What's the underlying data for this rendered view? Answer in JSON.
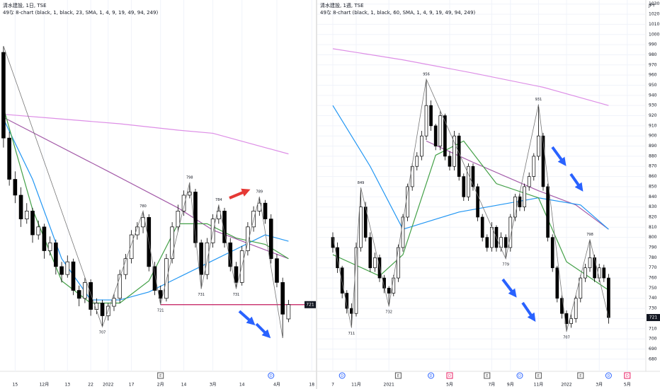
{
  "chart_data": [
    {
      "type": "candlestick",
      "title": "清水建設, 1日, TSE",
      "subtitle": "49な 8-chart (black, 1, black, 23, SMA, 1, 4, 9, 19, 49, 94, 249)",
      "x": [
        0,
        1,
        2,
        3,
        4,
        5,
        6,
        7,
        8,
        9,
        10,
        11,
        12,
        13,
        14,
        15,
        16,
        17,
        18,
        19,
        20,
        21,
        22,
        23,
        24,
        25,
        26,
        27,
        28,
        29,
        30,
        31,
        32,
        33,
        34,
        35,
        36,
        37,
        38,
        39,
        40,
        41,
        42,
        43,
        44,
        45,
        46,
        47,
        48,
        49
      ],
      "open": [
        880,
        826,
        800,
        790,
        775,
        780,
        765,
        770,
        755,
        760,
        745,
        740,
        748,
        730,
        725,
        735,
        718,
        722,
        714,
        720,
        725,
        740,
        750,
        765,
        770,
        776,
        745,
        730,
        725,
        750,
        770,
        780,
        790,
        792,
        760,
        740,
        760,
        775,
        780,
        760,
        745,
        735,
        755,
        770,
        780,
        785,
        775,
        750,
        735,
        712
      ],
      "high": [
        884,
        830,
        805,
        795,
        785,
        782,
        774,
        772,
        764,
        762,
        748,
        752,
        750,
        733,
        738,
        737,
        725,
        724,
        722,
        728,
        743,
        753,
        768,
        773,
        780,
        778,
        748,
        733,
        753,
        773,
        784,
        793,
        798,
        794,
        762,
        763,
        778,
        784,
        782,
        763,
        748,
        758,
        773,
        783,
        789,
        787,
        778,
        753,
        738,
        724
      ],
      "low": [
        820,
        796,
        785,
        770,
        772,
        760,
        762,
        750,
        752,
        740,
        735,
        738,
        727,
        720,
        722,
        714,
        715,
        707,
        711,
        717,
        722,
        737,
        747,
        762,
        766,
        742,
        727,
        721,
        723,
        747,
        767,
        777,
        788,
        757,
        731,
        737,
        757,
        772,
        757,
        742,
        731,
        733,
        752,
        767,
        777,
        772,
        747,
        732,
        700,
        710
      ],
      "close": [
        826,
        800,
        790,
        775,
        780,
        765,
        770,
        755,
        760,
        745,
        740,
        748,
        730,
        725,
        735,
        718,
        722,
        714,
        720,
        725,
        740,
        750,
        765,
        770,
        776,
        745,
        730,
        725,
        750,
        770,
        780,
        790,
        792,
        760,
        740,
        760,
        775,
        780,
        760,
        745,
        735,
        755,
        770,
        780,
        785,
        775,
        750,
        735,
        715,
        721
      ],
      "xlim": [
        -0.6,
        53.7
      ],
      "ylim": [
        679,
        913
      ],
      "xticks": [
        {
          "value": 2,
          "label": "15"
        },
        {
          "value": 7,
          "label": "12月"
        },
        {
          "value": 11,
          "label": "13"
        },
        {
          "value": 15,
          "label": "22"
        },
        {
          "value": 18,
          "label": "2022"
        },
        {
          "value": 22,
          "label": "17"
        },
        {
          "value": 27,
          "label": "2月"
        },
        {
          "value": 31,
          "label": "14"
        },
        {
          "value": 36,
          "label": "3月"
        },
        {
          "value": 41,
          "label": "14"
        },
        {
          "value": 47,
          "label": "4月"
        },
        {
          "value": 53,
          "label": "18"
        }
      ],
      "grid": true,
      "lines": [
        {
          "color": "#dd8ee6",
          "x": [
            0,
            10,
            20,
            30,
            36,
            49
          ],
          "values": [
            841,
            838,
            835,
            831,
            829,
            816
          ]
        },
        {
          "color": "#a35aa8",
          "x": [
            0,
            18,
            30,
            36,
            49
          ],
          "values": [
            839,
            805,
            782,
            768,
            750
          ]
        },
        {
          "color": "#2196f3",
          "x": [
            0,
            5,
            10,
            15,
            20,
            25,
            30,
            35,
            40,
            45,
            49
          ],
          "values": [
            838,
            800,
            750,
            724,
            724,
            729,
            738,
            747,
            756,
            765,
            761
          ]
        },
        {
          "color": "#43a047",
          "x": [
            0,
            5,
            10,
            15,
            20,
            25,
            30,
            35,
            40,
            45,
            49
          ],
          "values": [
            845,
            781,
            736,
            722,
            722,
            736,
            772,
            772,
            763,
            759,
            750
          ]
        }
      ],
      "zigzag": {
        "color": "#777777",
        "x": [
          0,
          17,
          24,
          27,
          32,
          34,
          37,
          40,
          44,
          48
        ],
        "values": [
          884,
          707,
          780,
          721,
          798,
          731,
          784,
          731,
          789,
          700
        ]
      },
      "annotations": [
        {
          "x": 17,
          "value": 707,
          "position": "below"
        },
        {
          "x": 24,
          "value": 780,
          "position": "above"
        },
        {
          "x": 27,
          "value": 721,
          "position": "below"
        },
        {
          "x": 32,
          "value": 798,
          "position": "above"
        },
        {
          "x": 34,
          "value": 731,
          "position": "below"
        },
        {
          "x": 37,
          "value": 784,
          "position": "above"
        },
        {
          "x": 40,
          "value": 731,
          "position": "below"
        },
        {
          "x": 44,
          "value": 789,
          "position": "above"
        }
      ],
      "level": {
        "value": 721,
        "from": 27,
        "color": "#c2185b"
      },
      "last_price": 721,
      "events": [
        {
          "x": 27,
          "label": "E",
          "color": "#555555"
        },
        {
          "x": 46,
          "label": "D",
          "color": "#2962ff"
        }
      ]
    },
    {
      "type": "candlestick",
      "title": "清水建設, 1週, TSE",
      "subtitle": "49な 8-chart (black, 1, black, 60, SMA, 1, 4, 9, 19, 49, 94, 249)",
      "currency": "JPY",
      "x": [
        0,
        1,
        2,
        3,
        4,
        5,
        6,
        7,
        8,
        9,
        10,
        11,
        12,
        13,
        14,
        15,
        16,
        17,
        18,
        19,
        20,
        21,
        22,
        23,
        24,
        25,
        26,
        27,
        28,
        29,
        30,
        31,
        32,
        33,
        34,
        35,
        36,
        37,
        38,
        39,
        40,
        41,
        42,
        43,
        44,
        45,
        46,
        47,
        48,
        49,
        50,
        51,
        52,
        53,
        54,
        55,
        56,
        57,
        58,
        59
      ],
      "open": [
        800,
        790,
        770,
        745,
        730,
        725,
        790,
        830,
        800,
        770,
        780,
        760,
        750,
        745,
        760,
        790,
        820,
        850,
        870,
        880,
        900,
        930,
        910,
        890,
        920,
        880,
        870,
        900,
        860,
        840,
        870,
        850,
        820,
        800,
        790,
        810,
        790,
        800,
        790,
        820,
        840,
        830,
        850,
        860,
        880,
        900,
        850,
        800,
        770,
        740,
        725,
        715,
        720,
        740,
        760,
        770,
        780,
        760,
        770,
        760
      ],
      "high": [
        805,
        795,
        772,
        748,
        735,
        795,
        849,
        835,
        805,
        785,
        783,
        763,
        752,
        763,
        793,
        823,
        853,
        873,
        884,
        905,
        956,
        935,
        912,
        925,
        922,
        885,
        905,
        903,
        863,
        873,
        873,
        853,
        823,
        803,
        815,
        812,
        805,
        803,
        823,
        843,
        843,
        853,
        864,
        883,
        931,
        903,
        853,
        803,
        772,
        743,
        728,
        724,
        743,
        763,
        774,
        798,
        783,
        774,
        773,
        764
      ],
      "low": [
        785,
        765,
        740,
        725,
        711,
        722,
        786,
        796,
        766,
        766,
        756,
        745,
        732,
        742,
        756,
        786,
        816,
        846,
        866,
        876,
        896,
        905,
        886,
        886,
        876,
        866,
        866,
        856,
        836,
        836,
        846,
        816,
        796,
        786,
        786,
        786,
        786,
        779,
        786,
        816,
        826,
        826,
        846,
        856,
        876,
        846,
        796,
        766,
        736,
        720,
        707,
        711,
        716,
        736,
        756,
        766,
        756,
        756,
        756,
        715
      ],
      "close": [
        790,
        770,
        745,
        730,
        725,
        790,
        830,
        800,
        770,
        780,
        760,
        750,
        745,
        760,
        790,
        820,
        850,
        870,
        880,
        900,
        930,
        910,
        890,
        920,
        880,
        870,
        900,
        860,
        840,
        870,
        850,
        820,
        800,
        790,
        810,
        790,
        800,
        790,
        820,
        840,
        830,
        850,
        860,
        880,
        900,
        850,
        800,
        770,
        740,
        725,
        715,
        720,
        740,
        760,
        770,
        780,
        760,
        770,
        760,
        721
      ],
      "xlim": [
        -3.33,
        66.97
      ],
      "ylim": [
        668,
        1034
      ],
      "yticks": [
        680,
        690,
        700,
        710,
        720,
        730,
        740,
        750,
        760,
        770,
        780,
        790,
        800,
        810,
        820,
        830,
        840,
        850,
        860,
        870,
        880,
        890,
        900,
        910,
        920,
        930,
        940,
        950,
        960,
        970,
        980,
        990,
        1000,
        1010,
        1020,
        1030
      ],
      "xticks": [
        {
          "value": 0,
          "label": "7"
        },
        {
          "value": 5,
          "label": "11月"
        },
        {
          "value": 12,
          "label": "2021"
        },
        {
          "value": 25,
          "label": "5月"
        },
        {
          "value": 34,
          "label": "7月"
        },
        {
          "value": 38,
          "label": "9月"
        },
        {
          "value": 44,
          "label": "11月"
        },
        {
          "value": 50,
          "label": "2022"
        },
        {
          "value": 57,
          "label": "3月"
        },
        {
          "value": 63,
          "label": "5月"
        }
      ],
      "grid": true,
      "lines": [
        {
          "color": "#dd8ee6",
          "x": [
            0,
            15,
            30,
            45,
            59
          ],
          "values": [
            986,
            975,
            962,
            948,
            930
          ]
        },
        {
          "color": "#a35aa8",
          "x": [
            20,
            30,
            44,
            52,
            59
          ],
          "values": [
            895,
            874,
            846,
            832,
            808
          ]
        },
        {
          "color": "#2196f3",
          "x": [
            0,
            8,
            15,
            27,
            44,
            53,
            59
          ],
          "values": [
            930,
            870,
            808,
            825,
            839,
            832,
            808
          ]
        },
        {
          "color": "#43a047",
          "x": [
            0,
            10,
            15,
            22,
            28,
            35,
            44,
            50,
            59
          ],
          "values": [
            783,
            762,
            783,
            881,
            895,
            853,
            839,
            776,
            748
          ]
        }
      ],
      "zigzag": {
        "color": "#777777",
        "x": [
          0,
          4,
          6,
          12,
          20,
          37,
          44,
          50,
          55,
          59
        ],
        "values": [
          800,
          711,
          849,
          732,
          956,
          779,
          931,
          707,
          798,
          721
        ]
      },
      "annotations": [
        {
          "x": 4,
          "value": 711,
          "position": "below"
        },
        {
          "x": 6,
          "value": 849,
          "position": "above"
        },
        {
          "x": 12,
          "value": 732,
          "position": "below"
        },
        {
          "x": 20,
          "value": 956,
          "position": "above"
        },
        {
          "x": 37,
          "value": 779,
          "position": "below"
        },
        {
          "x": 44,
          "value": 931,
          "position": "above"
        },
        {
          "x": 50,
          "value": 707,
          "position": "below"
        },
        {
          "x": 55,
          "value": 798,
          "position": "above"
        }
      ],
      "last_price": 721,
      "events": [
        {
          "x": 2,
          "label": "D",
          "color": "#2962ff"
        },
        {
          "x": 14,
          "label": "E",
          "color": "#555555"
        },
        {
          "x": 21,
          "label": "D",
          "color": "#2962ff"
        },
        {
          "x": 25,
          "label": "D",
          "color": "#e91e63"
        },
        {
          "x": 33,
          "label": "E",
          "color": "#555555"
        },
        {
          "x": 40,
          "label": "D",
          "color": "#2962ff"
        },
        {
          "x": 44,
          "label": "E",
          "color": "#555555"
        },
        {
          "x": 53,
          "label": "E",
          "color": "#555555"
        },
        {
          "x": 59,
          "label": "D",
          "color": "#2962ff"
        },
        {
          "x": 63,
          "label": "D",
          "color": "#e91e63"
        }
      ]
    }
  ]
}
